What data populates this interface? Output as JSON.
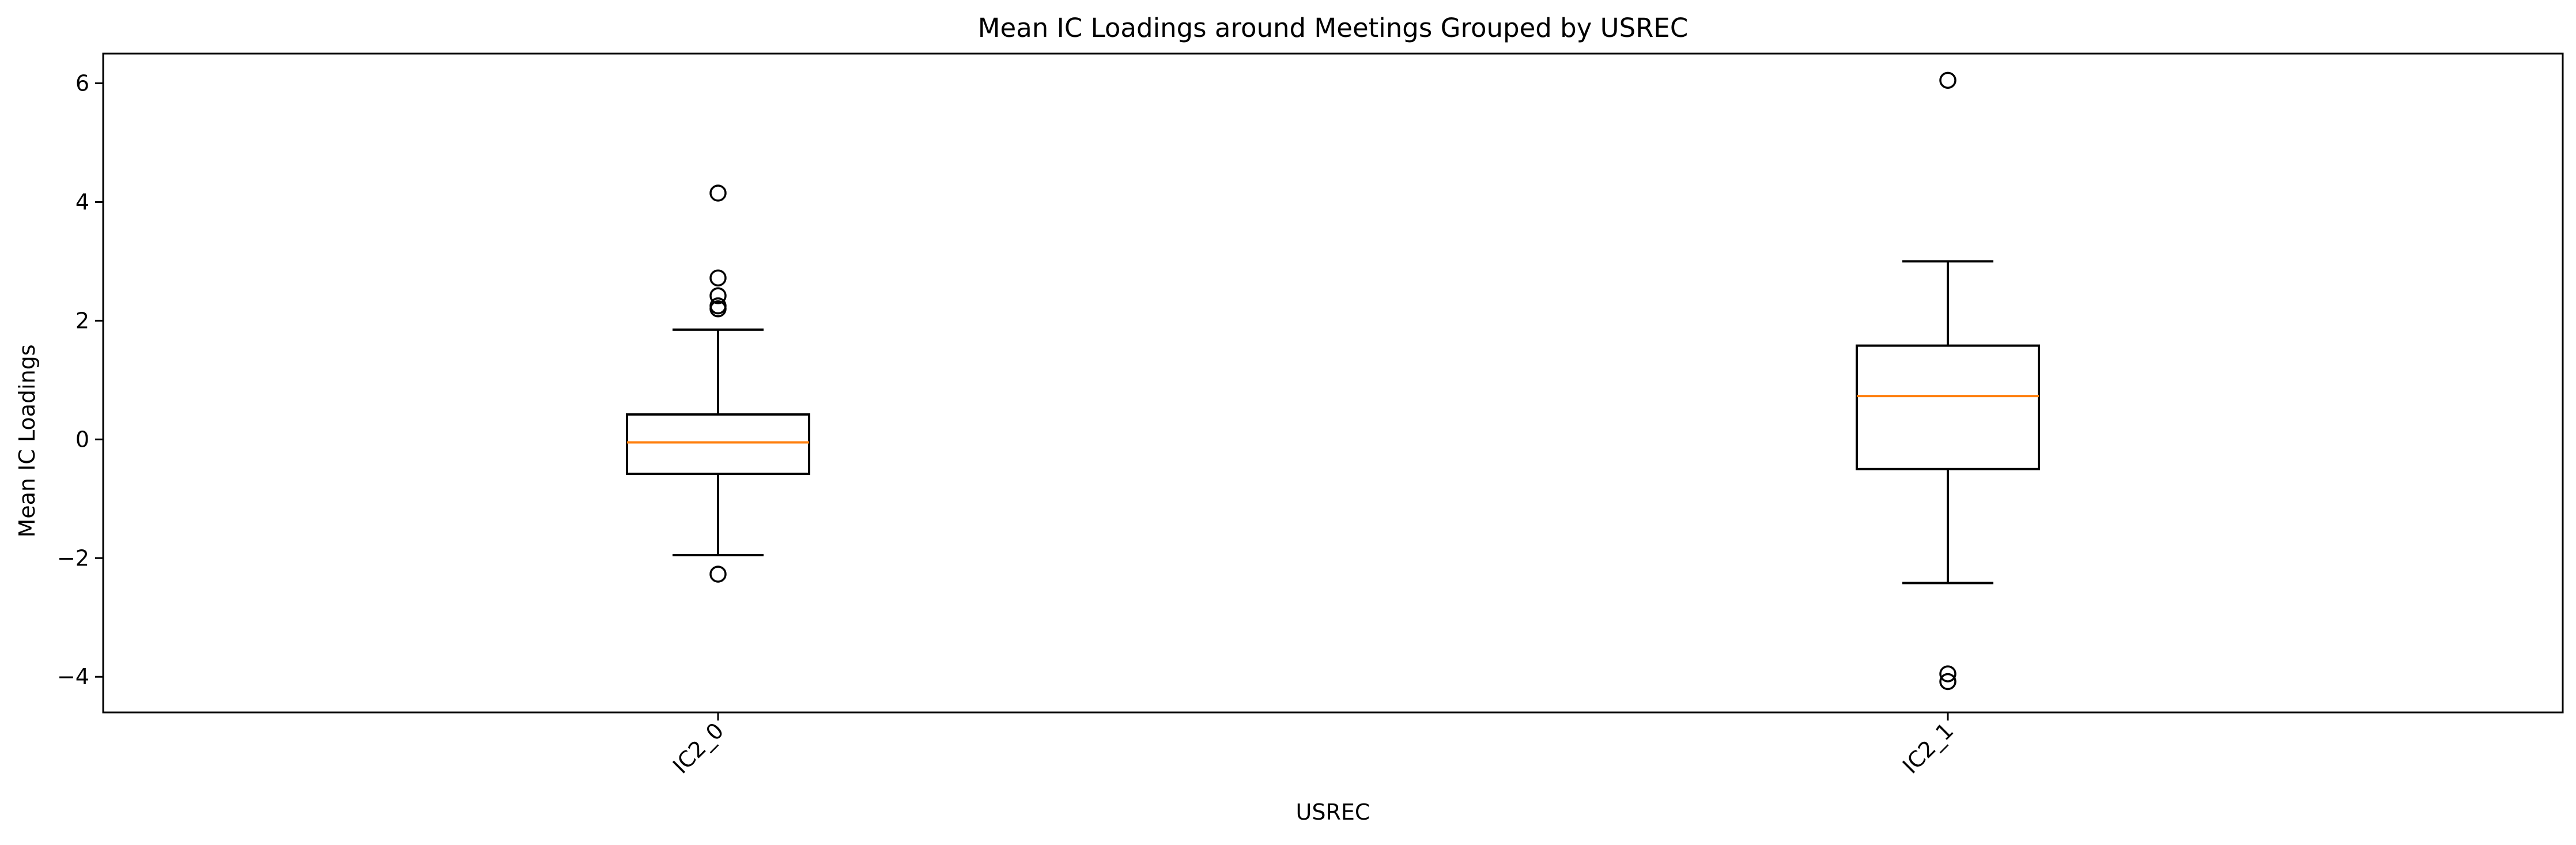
{
  "chart_data": {
    "type": "box",
    "title": "Mean IC Loadings around Meetings Grouped by USREC",
    "xlabel": "USREC",
    "ylabel": "Mean IC Loadings",
    "ylim": [
      -4.6,
      6.5
    ],
    "yticks": [
      -4,
      -2,
      0,
      2,
      4,
      6
    ],
    "ytick_labels": [
      "−4",
      "−2",
      "0",
      "2",
      "4",
      "6"
    ],
    "grid": false,
    "xtick_rotation_deg": 45,
    "box_color": "#000000",
    "median_color": "#ff7f0e",
    "categories": [
      "IC2_0",
      "IC2_1"
    ],
    "boxes": [
      {
        "label": "IC2_0",
        "whisker_low": -1.95,
        "q1": -0.58,
        "median": -0.05,
        "q3": 0.42,
        "whisker_high": 1.85,
        "outliers": [
          4.15,
          2.72,
          2.42,
          2.25,
          2.2,
          -2.27
        ]
      },
      {
        "label": "IC2_1",
        "whisker_low": -2.42,
        "q1": -0.5,
        "median": 0.73,
        "q3": 1.58,
        "whisker_high": 3.0,
        "outliers": [
          6.05,
          -3.95,
          -4.08
        ]
      }
    ]
  }
}
